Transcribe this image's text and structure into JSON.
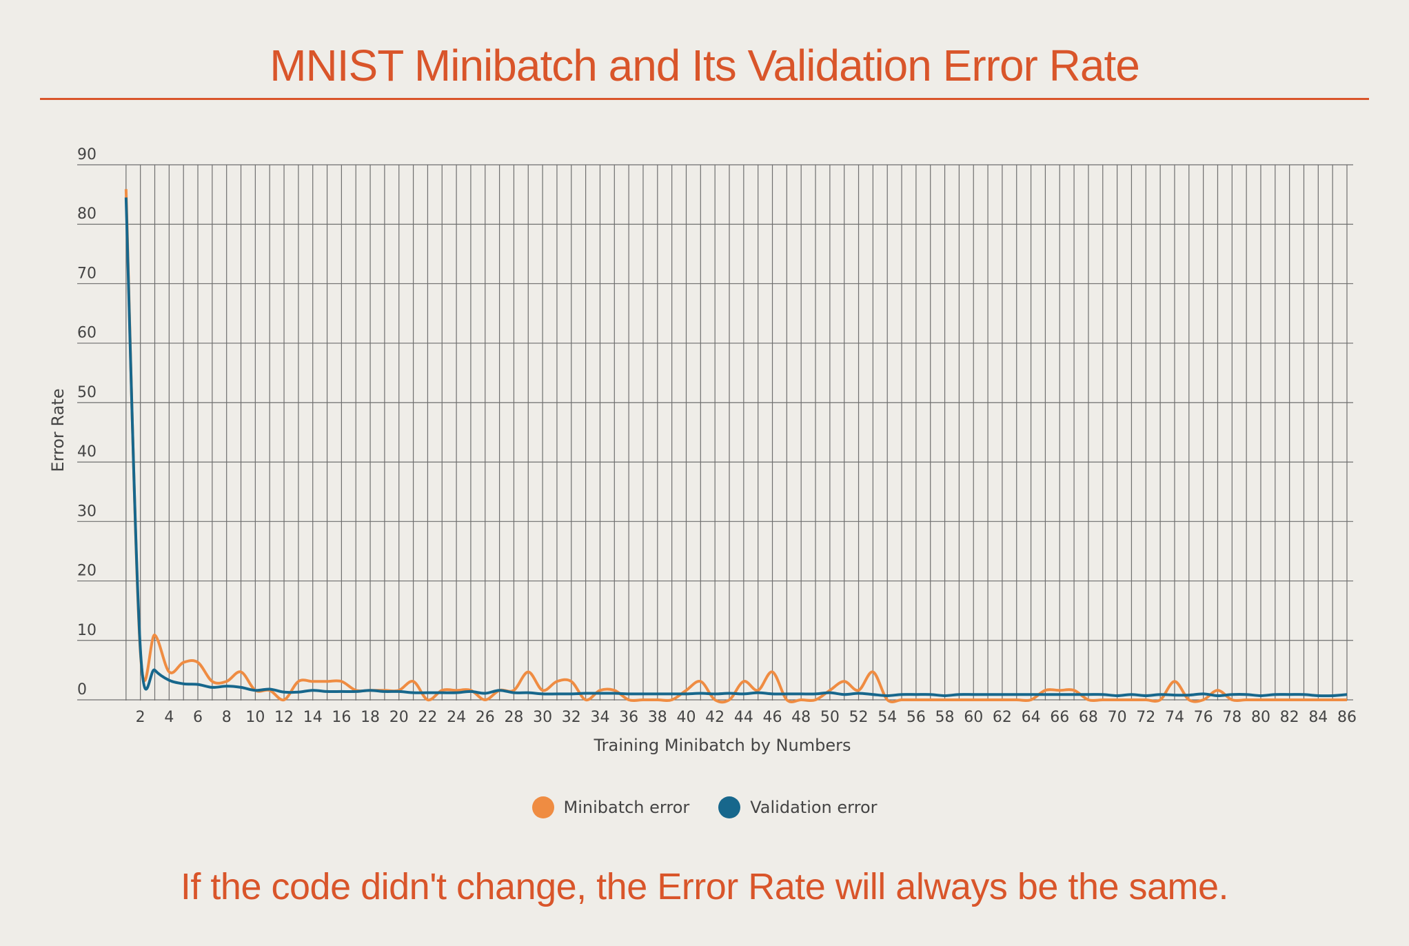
{
  "header": {
    "title": "MNIST Minibatch and Its Validation Error Rate"
  },
  "footer": {
    "caption": "If the code didn't change, the Error Rate will always be the same."
  },
  "colors": {
    "background": "#efede8",
    "accent": "#d9552a",
    "minibatch": "#ef8c42",
    "validation": "#17678c",
    "grid": "#6e6e6e",
    "text": "#444444"
  },
  "chart_data": {
    "type": "line",
    "title": "MNIST Minibatch and Its Validation Error Rate",
    "xlabel": "Training Minibatch by Numbers",
    "ylabel": "Error Rate",
    "xlim": [
      0,
      86
    ],
    "ylim": [
      0,
      90
    ],
    "yticks": [
      0,
      10,
      20,
      30,
      40,
      50,
      60,
      70,
      80,
      90
    ],
    "xticks": [
      2,
      4,
      6,
      8,
      10,
      12,
      14,
      16,
      18,
      20,
      22,
      24,
      26,
      28,
      30,
      32,
      34,
      36,
      38,
      40,
      42,
      44,
      46,
      48,
      50,
      52,
      54,
      56,
      58,
      60,
      62,
      64,
      66,
      68,
      70,
      72,
      74,
      76,
      78,
      80,
      82,
      84,
      86
    ],
    "grid": true,
    "legend_position": "bottom-center",
    "series": [
      {
        "name": "Minibatch error",
        "color": "#ef8c42",
        "x": [
          1,
          2,
          3,
          4,
          5,
          6,
          7,
          8,
          9,
          10,
          11,
          12,
          13,
          14,
          15,
          16,
          17,
          18,
          19,
          20,
          21,
          22,
          23,
          24,
          25,
          26,
          27,
          28,
          29,
          30,
          31,
          32,
          33,
          34,
          35,
          36,
          37,
          38,
          39,
          40,
          41,
          42,
          43,
          44,
          45,
          46,
          47,
          48,
          49,
          50,
          51,
          52,
          53,
          54,
          55,
          56,
          57,
          58,
          59,
          60,
          61,
          62,
          63,
          64,
          65,
          66,
          67,
          68,
          69,
          70,
          71,
          72,
          73,
          74,
          75,
          76,
          77,
          78,
          79,
          80,
          81,
          82,
          83,
          84,
          85,
          86
        ],
        "values": [
          85.9,
          8,
          10.9,
          4.7,
          6.3,
          6.3,
          3.1,
          3.1,
          4.7,
          1.6,
          1.6,
          0,
          3.1,
          3.1,
          3.1,
          3.1,
          1.6,
          1.6,
          1.6,
          1.6,
          3.1,
          0,
          1.6,
          1.6,
          1.6,
          0,
          1.6,
          1.6,
          4.7,
          1.6,
          3.1,
          3.1,
          0,
          1.6,
          1.6,
          0,
          0,
          0,
          0,
          1.6,
          3.1,
          0,
          0,
          3.1,
          1.6,
          4.7,
          0,
          0,
          0,
          1.6,
          3.1,
          1.6,
          4.7,
          0,
          0,
          0,
          0,
          0,
          0,
          0,
          0,
          0,
          0,
          0,
          1.6,
          1.6,
          1.6,
          0,
          0,
          0,
          0,
          0,
          0,
          3.1,
          0,
          0,
          1.6,
          0,
          0,
          0,
          0,
          0,
          0,
          0,
          0,
          0
        ]
      },
      {
        "name": "Validation error",
        "color": "#17678c",
        "x": [
          1,
          2,
          3,
          4,
          5,
          6,
          7,
          8,
          9,
          10,
          11,
          12,
          13,
          14,
          15,
          16,
          17,
          18,
          19,
          20,
          21,
          22,
          23,
          24,
          25,
          26,
          27,
          28,
          29,
          30,
          31,
          32,
          33,
          34,
          35,
          36,
          37,
          38,
          39,
          40,
          41,
          42,
          43,
          44,
          45,
          46,
          47,
          48,
          49,
          50,
          51,
          52,
          53,
          54,
          55,
          56,
          57,
          58,
          59,
          60,
          61,
          62,
          63,
          64,
          65,
          66,
          67,
          68,
          69,
          70,
          71,
          72,
          73,
          74,
          75,
          76,
          77,
          78,
          79,
          80,
          81,
          82,
          83,
          84,
          85,
          86
        ],
        "values": [
          84.5,
          8.5,
          5,
          3.3,
          2.7,
          2.6,
          2.1,
          2.3,
          2.1,
          1.6,
          1.8,
          1.3,
          1.3,
          1.6,
          1.4,
          1.4,
          1.4,
          1.6,
          1.4,
          1.4,
          1.2,
          1.2,
          1.2,
          1.2,
          1.4,
          1.1,
          1.6,
          1.2,
          1.2,
          1,
          1,
          1,
          1.1,
          1.1,
          1.1,
          1,
          1,
          1,
          1,
          1,
          1.1,
          1,
          1.1,
          1,
          1.2,
          1,
          1,
          1,
          1,
          1.2,
          0.9,
          1.1,
          0.9,
          0.7,
          0.9,
          0.9,
          0.9,
          0.7,
          0.9,
          0.9,
          0.9,
          0.9,
          0.9,
          0.9,
          0.9,
          0.9,
          0.9,
          0.9,
          0.9,
          0.7,
          0.9,
          0.7,
          0.9,
          0.8,
          0.8,
          1,
          0.7,
          0.9,
          0.9,
          0.7,
          0.9,
          0.9,
          0.9,
          0.7,
          0.7,
          0.9
        ]
      }
    ]
  }
}
